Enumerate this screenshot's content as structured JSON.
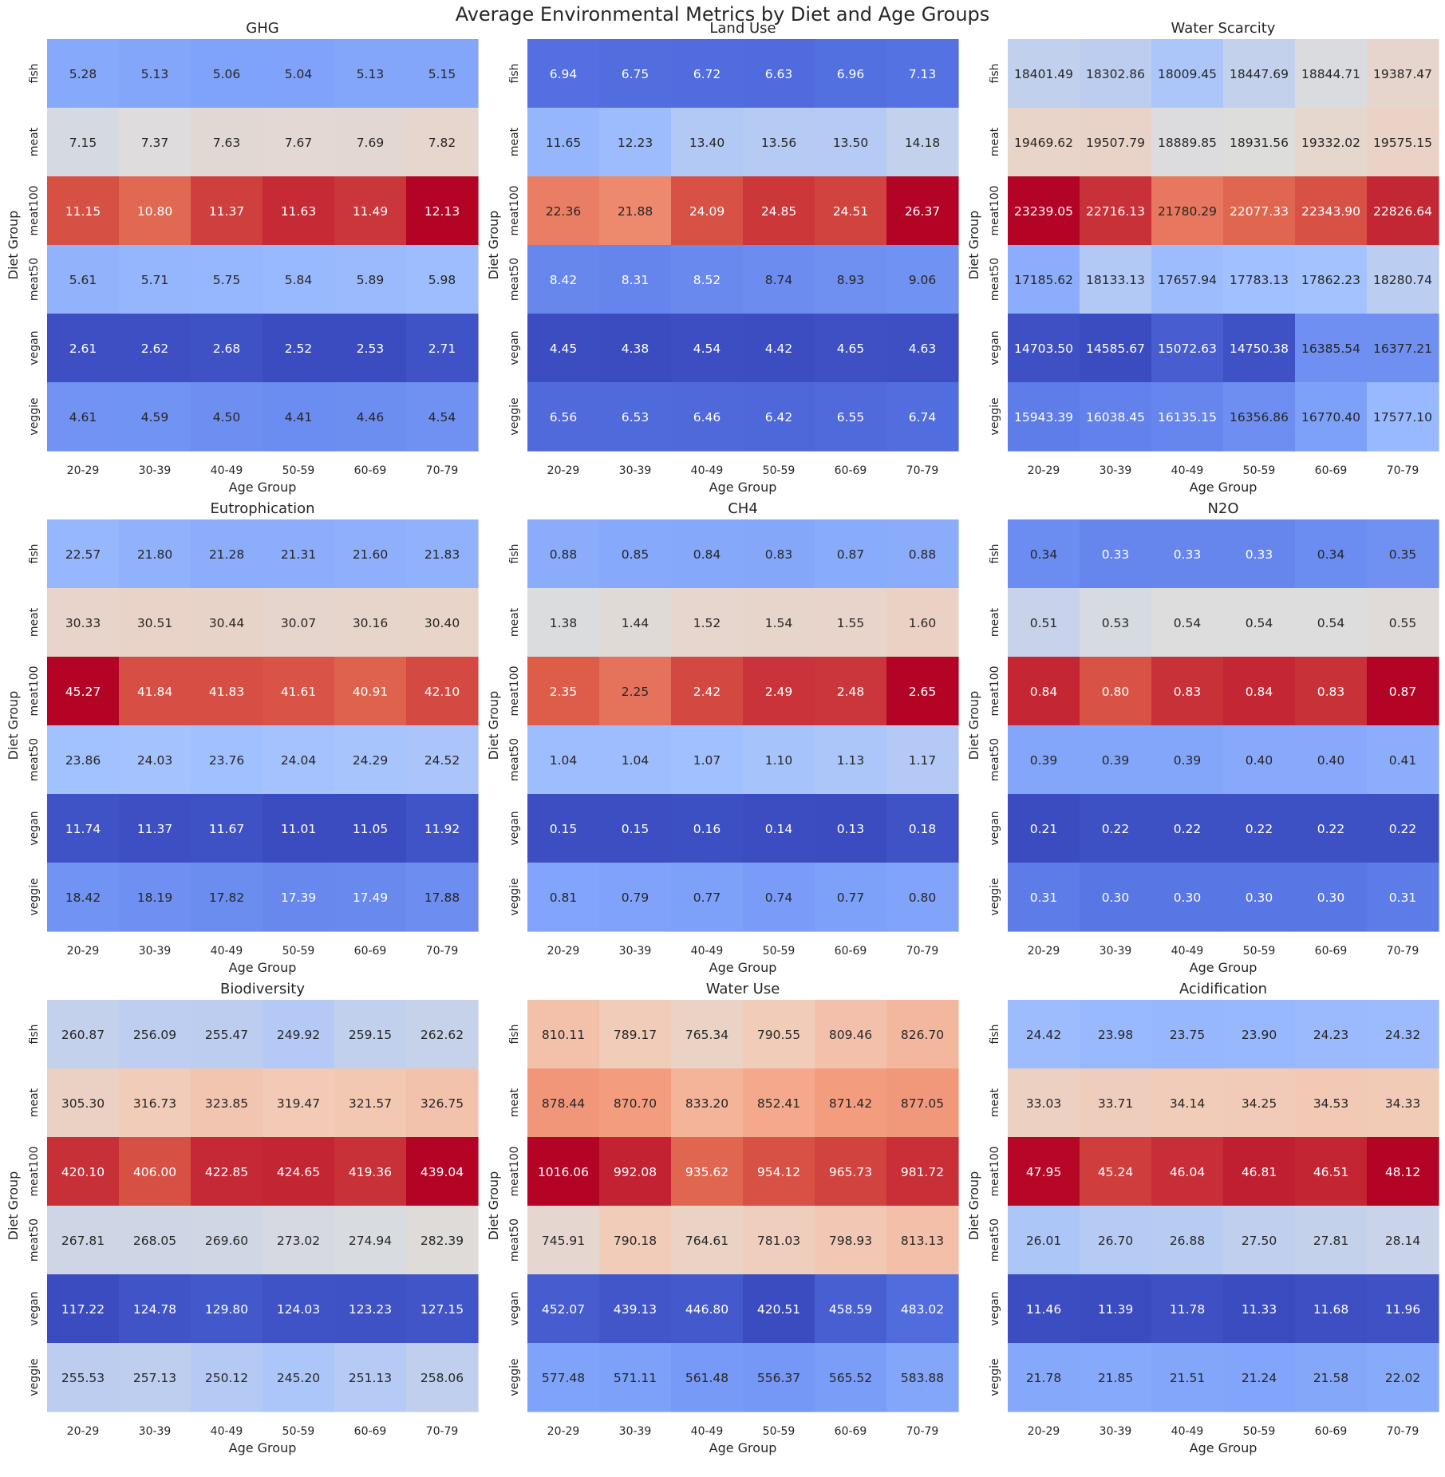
{
  "figure": {
    "title": "Average Environmental Metrics by Diet and Age Groups"
  },
  "chart_data": [
    {
      "type": "heatmap",
      "title": "GHG",
      "xlabel": "Age Group",
      "ylabel": "Diet Group",
      "x": [
        "20-29",
        "30-39",
        "40-49",
        "50-59",
        "60-69",
        "70-79"
      ],
      "y": [
        "fish",
        "meat",
        "meat100",
        "meat50",
        "vegan",
        "veggie"
      ],
      "values": [
        [
          5.28,
          5.13,
          5.06,
          5.04,
          5.13,
          5.15
        ],
        [
          7.15,
          7.37,
          7.63,
          7.67,
          7.69,
          7.82
        ],
        [
          11.15,
          10.8,
          11.37,
          11.63,
          11.49,
          12.13
        ],
        [
          5.61,
          5.71,
          5.75,
          5.84,
          5.89,
          5.98
        ],
        [
          2.61,
          2.62,
          2.68,
          2.52,
          2.53,
          2.71
        ],
        [
          4.61,
          4.59,
          4.5,
          4.41,
          4.46,
          4.54
        ]
      ],
      "colormap": "coolwarm",
      "colorbar": false,
      "annotations": true
    },
    {
      "type": "heatmap",
      "title": "Land Use",
      "xlabel": "Age Group",
      "ylabel": "Diet Group",
      "x": [
        "20-29",
        "30-39",
        "40-49",
        "50-59",
        "60-69",
        "70-79"
      ],
      "y": [
        "fish",
        "meat",
        "meat100",
        "meat50",
        "vegan",
        "veggie"
      ],
      "values": [
        [
          6.94,
          6.75,
          6.72,
          6.63,
          6.96,
          7.13
        ],
        [
          11.65,
          12.23,
          13.4,
          13.56,
          13.5,
          14.18
        ],
        [
          22.36,
          21.88,
          24.09,
          24.85,
          24.51,
          26.37
        ],
        [
          8.42,
          8.31,
          8.52,
          8.74,
          8.93,
          9.06
        ],
        [
          4.45,
          4.38,
          4.54,
          4.42,
          4.65,
          4.63
        ],
        [
          6.56,
          6.53,
          6.46,
          6.42,
          6.55,
          6.74
        ]
      ],
      "colormap": "coolwarm",
      "colorbar": false,
      "annotations": true
    },
    {
      "type": "heatmap",
      "title": "Water Scarcity",
      "xlabel": "Age Group",
      "ylabel": "Diet Group",
      "x": [
        "20-29",
        "30-39",
        "40-49",
        "50-59",
        "60-69",
        "70-79"
      ],
      "y": [
        "fish",
        "meat",
        "meat100",
        "meat50",
        "vegan",
        "veggie"
      ],
      "values": [
        [
          18401.49,
          18302.86,
          18009.45,
          18447.69,
          18844.71,
          19387.47
        ],
        [
          19469.62,
          19507.79,
          18889.85,
          18931.56,
          19332.02,
          19575.15
        ],
        [
          23239.05,
          22716.13,
          21780.29,
          22077.33,
          22343.9,
          22826.64
        ],
        [
          17185.62,
          18133.13,
          17657.94,
          17783.13,
          17862.23,
          18280.74
        ],
        [
          14703.5,
          14585.67,
          15072.63,
          14750.38,
          16385.54,
          16377.21
        ],
        [
          15943.39,
          16038.45,
          16135.15,
          16356.86,
          16770.4,
          17577.1
        ]
      ],
      "colormap": "coolwarm",
      "colorbar": false,
      "annotations": true
    },
    {
      "type": "heatmap",
      "title": "Eutrophication",
      "xlabel": "Age Group",
      "ylabel": "Diet Group",
      "x": [
        "20-29",
        "30-39",
        "40-49",
        "50-59",
        "60-69",
        "70-79"
      ],
      "y": [
        "fish",
        "meat",
        "meat100",
        "meat50",
        "vegan",
        "veggie"
      ],
      "values": [
        [
          22.57,
          21.8,
          21.28,
          21.31,
          21.6,
          21.83
        ],
        [
          30.33,
          30.51,
          30.44,
          30.07,
          30.16,
          30.4
        ],
        [
          45.27,
          41.84,
          41.83,
          41.61,
          40.91,
          42.1
        ],
        [
          23.86,
          24.03,
          23.76,
          24.04,
          24.29,
          24.52
        ],
        [
          11.74,
          11.37,
          11.67,
          11.01,
          11.05,
          11.92
        ],
        [
          18.42,
          18.19,
          17.82,
          17.39,
          17.49,
          17.88
        ]
      ],
      "colormap": "coolwarm",
      "colorbar": false,
      "annotations": true
    },
    {
      "type": "heatmap",
      "title": "CH4",
      "xlabel": "Age Group",
      "ylabel": "Diet Group",
      "x": [
        "20-29",
        "30-39",
        "40-49",
        "50-59",
        "60-69",
        "70-79"
      ],
      "y": [
        "fish",
        "meat",
        "meat100",
        "meat50",
        "vegan",
        "veggie"
      ],
      "values": [
        [
          0.88,
          0.85,
          0.84,
          0.83,
          0.87,
          0.88
        ],
        [
          1.38,
          1.44,
          1.52,
          1.54,
          1.55,
          1.6
        ],
        [
          2.35,
          2.25,
          2.42,
          2.49,
          2.48,
          2.65
        ],
        [
          1.04,
          1.04,
          1.07,
          1.1,
          1.13,
          1.17
        ],
        [
          0.15,
          0.15,
          0.16,
          0.14,
          0.13,
          0.18
        ],
        [
          0.81,
          0.79,
          0.77,
          0.74,
          0.77,
          0.8
        ]
      ],
      "colormap": "coolwarm",
      "colorbar": false,
      "annotations": true
    },
    {
      "type": "heatmap",
      "title": "N2O",
      "xlabel": "Age Group",
      "ylabel": "Diet Group",
      "x": [
        "20-29",
        "30-39",
        "40-49",
        "50-59",
        "60-69",
        "70-79"
      ],
      "y": [
        "fish",
        "meat",
        "meat100",
        "meat50",
        "vegan",
        "veggie"
      ],
      "values": [
        [
          0.34,
          0.33,
          0.33,
          0.33,
          0.34,
          0.35
        ],
        [
          0.51,
          0.53,
          0.54,
          0.54,
          0.54,
          0.55
        ],
        [
          0.84,
          0.8,
          0.83,
          0.84,
          0.83,
          0.87
        ],
        [
          0.39,
          0.39,
          0.39,
          0.4,
          0.4,
          0.41
        ],
        [
          0.21,
          0.22,
          0.22,
          0.22,
          0.22,
          0.22
        ],
        [
          0.31,
          0.3,
          0.3,
          0.3,
          0.3,
          0.31
        ]
      ],
      "colormap": "coolwarm",
      "colorbar": false,
      "annotations": true
    },
    {
      "type": "heatmap",
      "title": "Biodiversity",
      "xlabel": "Age Group",
      "ylabel": "Diet Group",
      "x": [
        "20-29",
        "30-39",
        "40-49",
        "50-59",
        "60-69",
        "70-79"
      ],
      "y": [
        "fish",
        "meat",
        "meat100",
        "meat50",
        "vegan",
        "veggie"
      ],
      "values": [
        [
          260.87,
          256.09,
          255.47,
          249.92,
          259.15,
          262.62
        ],
        [
          305.3,
          316.73,
          323.85,
          319.47,
          321.57,
          326.75
        ],
        [
          420.1,
          406.0,
          422.85,
          424.65,
          419.36,
          439.04
        ],
        [
          267.81,
          268.05,
          269.6,
          273.02,
          274.94,
          282.39
        ],
        [
          117.22,
          124.78,
          129.8,
          124.03,
          123.23,
          127.15
        ],
        [
          255.53,
          257.13,
          250.12,
          245.2,
          251.13,
          258.06
        ]
      ],
      "colormap": "coolwarm",
      "colorbar": false,
      "annotations": true
    },
    {
      "type": "heatmap",
      "title": "Water Use",
      "xlabel": "Age Group",
      "ylabel": "Diet Group",
      "x": [
        "20-29",
        "30-39",
        "40-49",
        "50-59",
        "60-69",
        "70-79"
      ],
      "y": [
        "fish",
        "meat",
        "meat100",
        "meat50",
        "vegan",
        "veggie"
      ],
      "values": [
        [
          810.11,
          789.17,
          765.34,
          790.55,
          809.46,
          826.7
        ],
        [
          878.44,
          870.7,
          833.2,
          852.41,
          871.42,
          877.05
        ],
        [
          1016.06,
          992.08,
          935.62,
          954.12,
          965.73,
          981.72
        ],
        [
          745.91,
          790.18,
          764.61,
          781.03,
          798.93,
          813.13
        ],
        [
          452.07,
          439.13,
          446.8,
          420.51,
          458.59,
          483.02
        ],
        [
          577.48,
          571.11,
          561.48,
          556.37,
          565.52,
          583.88
        ]
      ],
      "colormap": "coolwarm",
      "colorbar": false,
      "annotations": true
    },
    {
      "type": "heatmap",
      "title": "Acidification",
      "xlabel": "Age Group",
      "ylabel": "Diet Group",
      "x": [
        "20-29",
        "30-39",
        "40-49",
        "50-59",
        "60-69",
        "70-79"
      ],
      "y": [
        "fish",
        "meat",
        "meat100",
        "meat50",
        "vegan",
        "veggie"
      ],
      "values": [
        [
          24.42,
          23.98,
          23.75,
          23.9,
          24.23,
          24.32
        ],
        [
          33.03,
          33.71,
          34.14,
          34.25,
          34.53,
          34.33
        ],
        [
          47.95,
          45.24,
          46.04,
          46.81,
          46.51,
          48.12
        ],
        [
          26.01,
          26.7,
          26.88,
          27.5,
          27.81,
          28.14
        ],
        [
          11.46,
          11.39,
          11.78,
          11.33,
          11.68,
          11.96
        ],
        [
          21.78,
          21.85,
          21.51,
          21.24,
          21.58,
          22.02
        ]
      ],
      "colormap": "coolwarm",
      "colorbar": false,
      "annotations": true
    }
  ]
}
